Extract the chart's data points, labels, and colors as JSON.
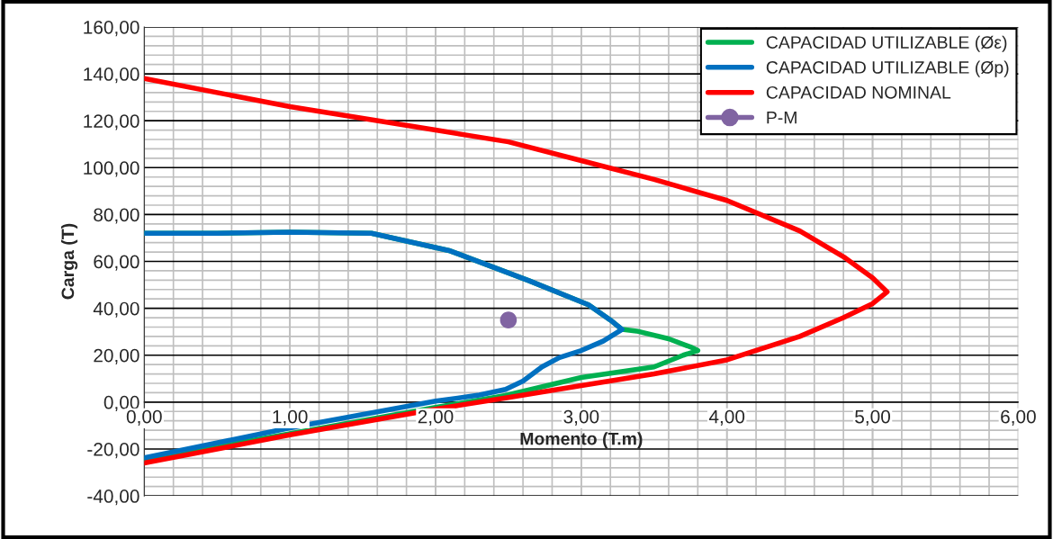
{
  "chart_data": {
    "type": "line",
    "xlabel": "Momento (T.m)",
    "ylabel": "Carga (T)",
    "xlim": [
      0,
      6
    ],
    "ylim": [
      -40,
      160
    ],
    "xticks": [
      {
        "value": 0,
        "label": "0,00"
      },
      {
        "value": 1,
        "label": "1,00"
      },
      {
        "value": 2,
        "label": "2,00"
      },
      {
        "value": 3,
        "label": "3,00"
      },
      {
        "value": 4,
        "label": "4,00"
      },
      {
        "value": 5,
        "label": "5,00"
      },
      {
        "value": 6,
        "label": "6,00"
      }
    ],
    "yticks": [
      {
        "value": -40,
        "label": "-40,00"
      },
      {
        "value": -20,
        "label": "-20,00"
      },
      {
        "value": 0,
        "label": "0,00"
      },
      {
        "value": 20,
        "label": "20,00"
      },
      {
        "value": 40,
        "label": "40,00"
      },
      {
        "value": 60,
        "label": "60,00"
      },
      {
        "value": 80,
        "label": "80,00"
      },
      {
        "value": 100,
        "label": "100,00"
      },
      {
        "value": 120,
        "label": "120,00"
      },
      {
        "value": 140,
        "label": "140,00"
      },
      {
        "value": 160,
        "label": "160,00"
      }
    ],
    "grid": true,
    "legend": "top right",
    "series": [
      {
        "name": "CAPACIDAD UTILIZABLE (Øε)",
        "color": "#00b050",
        "marker": "none",
        "x": [
          0,
          0.5,
          1,
          1.56,
          2.1,
          2.64,
          3.05,
          3.2,
          3.28,
          3.38,
          3.6,
          3.75,
          3.8,
          3.7,
          3.5,
          3.0,
          2.48,
          2,
          1,
          0
        ],
        "values": [
          72,
          72,
          72.5,
          72,
          64.5,
          51.8,
          41.5,
          35,
          31,
          30.3,
          27,
          23.5,
          22,
          20,
          15,
          10.5,
          2.8,
          -2.3,
          -13.5,
          -24.5
        ]
      },
      {
        "name": "CAPACIDAD UTILIZABLE (Øp)",
        "color": "#0070c0",
        "marker": "none",
        "x": [
          0,
          0.5,
          1,
          1.56,
          2.1,
          2.64,
          3.05,
          3.2,
          3.28,
          3.15,
          3.0,
          2.85,
          2.73,
          2.6,
          2.48,
          2.3,
          2,
          1,
          0
        ],
        "values": [
          72,
          72,
          72.5,
          72,
          64.5,
          51.8,
          41.5,
          35,
          31,
          26,
          22,
          19,
          15,
          9,
          5.4,
          3,
          0.4,
          -11,
          -23.8
        ]
      },
      {
        "name": "CAPACIDAD NOMINAL",
        "color": "#ff0000",
        "marker": "none",
        "x": [
          0,
          1,
          2,
          2.5,
          3,
          3.5,
          4,
          4.5,
          4.8,
          5.0,
          5.1,
          5.0,
          4.8,
          4.5,
          4,
          3.5,
          3,
          2.5,
          2,
          1,
          0
        ],
        "values": [
          138,
          126,
          116,
          111,
          103,
          95,
          86,
          73,
          62,
          53,
          47,
          42,
          36,
          28,
          18,
          12,
          7,
          2,
          -3,
          -14,
          -26
        ]
      },
      {
        "name": "P-M",
        "color": "#8064a2",
        "type": "scatter",
        "marker": "circle",
        "x": [
          2.5
        ],
        "values": [
          35
        ]
      }
    ]
  }
}
